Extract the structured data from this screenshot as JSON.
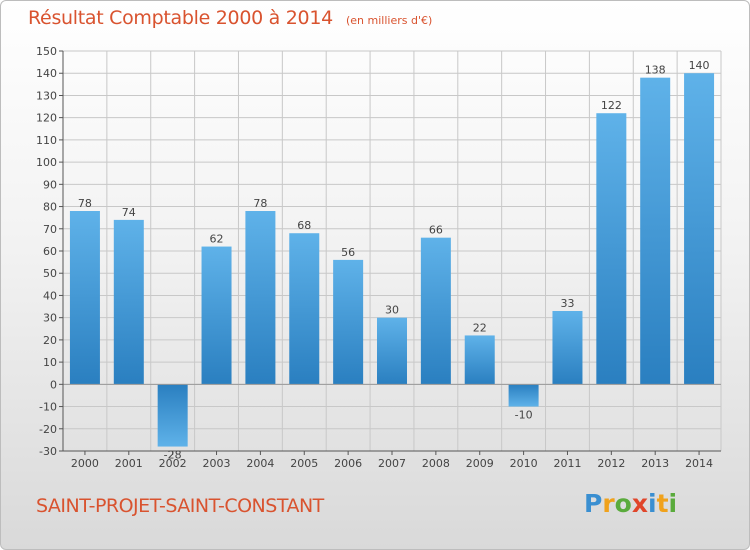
{
  "title": "Résultat Comptable 2000 à 2014",
  "subtitle": "(en milliers d'€)",
  "commune": "SAINT-PROJET-SAINT-CONSTANT",
  "brand": {
    "text": "Proxiti",
    "letters": [
      {
        "char": "P",
        "color": "#3a8fd1"
      },
      {
        "char": "r",
        "color": "#f0a21c"
      },
      {
        "char": "o",
        "color": "#5aab3c"
      },
      {
        "char": "x",
        "color": "#e0462b"
      },
      {
        "char": "i",
        "color": "#3a8fd1"
      },
      {
        "char": "t",
        "color": "#f0a21c"
      },
      {
        "char": "i",
        "color": "#5aab3c"
      }
    ]
  },
  "colors": {
    "title": "#d9532f",
    "bar_light": "#5aaee6",
    "bar_dark": "#2a7fc0",
    "grid": "#c8c8c8",
    "axis": "#555555"
  },
  "chart_data": {
    "type": "bar",
    "title": "Résultat Comptable 2000 à 2014",
    "subtitle": "(en milliers d'€)",
    "categories": [
      "2000",
      "2001",
      "2002",
      "2003",
      "2004",
      "2005",
      "2006",
      "2007",
      "2008",
      "2009",
      "2010",
      "2011",
      "2012",
      "2013",
      "2014"
    ],
    "values": [
      78,
      74,
      -28,
      62,
      78,
      68,
      56,
      30,
      66,
      22,
      -10,
      33,
      122,
      138,
      140
    ],
    "data_labels": [
      "78",
      "74",
      "-28",
      "62",
      "78",
      "68",
      "56",
      "30",
      "66",
      "22",
      "-10",
      "33",
      "122",
      "138",
      "140"
    ],
    "ylim": [
      -30,
      150
    ],
    "ytick_step": 10,
    "grid": true,
    "xlabel": "",
    "ylabel": ""
  }
}
